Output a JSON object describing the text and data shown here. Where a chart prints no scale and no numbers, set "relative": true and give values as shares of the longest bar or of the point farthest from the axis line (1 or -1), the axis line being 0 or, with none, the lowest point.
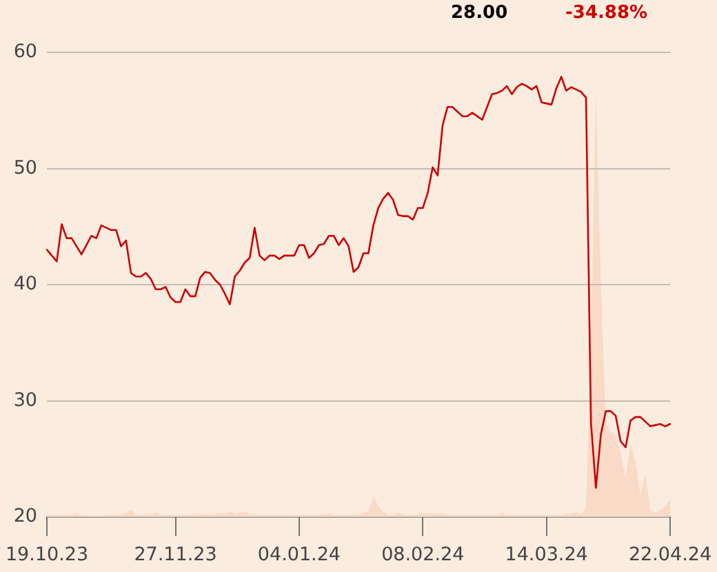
{
  "chart_data": [
    {
      "type": "line",
      "categories": [
        "19.10.23",
        null,
        null,
        null,
        null,
        null,
        null,
        null,
        null,
        null,
        null,
        null,
        null,
        null,
        null,
        null,
        null,
        null,
        null,
        null,
        null,
        null,
        null,
        null,
        null,
        null,
        "27.11.23",
        null,
        null,
        null,
        null,
        null,
        null,
        null,
        null,
        null,
        null,
        null,
        null,
        null,
        null,
        null,
        null,
        null,
        null,
        null,
        null,
        null,
        null,
        null,
        null,
        "04.01.24",
        null,
        null,
        null,
        null,
        null,
        null,
        null,
        null,
        null,
        null,
        null,
        null,
        null,
        null,
        null,
        null,
        null,
        null,
        null,
        null,
        null,
        null,
        null,
        null,
        "08.02.24",
        null,
        null,
        null,
        null,
        null,
        null,
        null,
        null,
        null,
        null,
        null,
        null,
        null,
        null,
        null,
        null,
        null,
        null,
        null,
        null,
        null,
        null,
        null,
        null,
        "14.03.24",
        null,
        null,
        null,
        null,
        null,
        null,
        null,
        null,
        null,
        null,
        null,
        null,
        null,
        null,
        null,
        null,
        null,
        null,
        null,
        null,
        null,
        null,
        null,
        null,
        "22.04.24"
      ],
      "values": [
        43.0,
        42.5,
        42.0,
        45.2,
        44.0,
        44.0,
        43.3,
        42.6,
        43.4,
        44.2,
        44.0,
        45.1,
        44.9,
        44.7,
        44.7,
        43.3,
        43.8,
        41.0,
        40.7,
        40.7,
        41.0,
        40.5,
        39.6,
        39.6,
        39.8,
        38.9,
        38.5,
        38.5,
        39.6,
        39.0,
        39.0,
        40.6,
        41.1,
        41.0,
        40.4,
        40.0,
        39.2,
        38.3,
        40.7,
        41.2,
        41.9,
        42.3,
        44.9,
        42.5,
        42.1,
        42.5,
        42.5,
        42.2,
        42.5,
        42.5,
        42.5,
        43.4,
        43.4,
        42.3,
        42.7,
        43.4,
        43.5,
        44.2,
        44.2,
        43.4,
        44.0,
        43.3,
        41.1,
        41.5,
        42.7,
        42.7,
        45.1,
        46.6,
        47.4,
        47.9,
        47.3,
        46.0,
        45.9,
        45.9,
        45.6,
        46.6,
        46.6,
        47.9,
        50.1,
        49.4,
        53.7,
        55.3,
        55.3,
        54.9,
        54.5,
        54.5,
        54.8,
        54.5,
        54.2,
        55.3,
        56.4,
        56.5,
        56.7,
        57.1,
        56.4,
        57.0,
        57.3,
        57.1,
        56.8,
        57.1,
        55.7,
        55.6,
        55.5,
        56.9,
        57.9,
        56.7,
        57.0,
        56.8,
        56.6,
        56.1,
        28.1,
        22.5,
        27.1,
        29.1,
        29.1,
        28.7,
        26.5,
        26.0,
        28.3,
        28.6,
        28.6,
        28.2,
        27.8,
        27.9,
        28.0,
        27.8,
        28.0
      ],
      "color": "#cc0000",
      "ylim": [
        20,
        60
      ],
      "yticks": [
        20,
        30,
        40,
        50,
        60
      ],
      "grid": "y",
      "annotations": [
        "28.00",
        "-34.88%"
      ]
    },
    {
      "type": "area",
      "categories": [
        "19.10.23",
        null,
        null,
        null,
        null,
        null,
        null,
        null,
        null,
        null,
        null,
        null,
        null,
        null,
        null,
        null,
        null,
        null,
        null,
        null,
        null,
        null,
        null,
        null,
        null,
        null,
        "27.11.23",
        null,
        null,
        null,
        null,
        null,
        null,
        null,
        null,
        null,
        null,
        null,
        null,
        null,
        null,
        null,
        null,
        null,
        null,
        null,
        null,
        null,
        null,
        null,
        null,
        "04.01.24",
        null,
        null,
        null,
        null,
        null,
        null,
        null,
        null,
        null,
        null,
        null,
        null,
        null,
        null,
        null,
        null,
        null,
        null,
        null,
        null,
        null,
        null,
        null,
        null,
        "08.02.24",
        null,
        null,
        null,
        null,
        null,
        null,
        null,
        null,
        null,
        null,
        null,
        null,
        null,
        null,
        null,
        null,
        null,
        null,
        null,
        null,
        null,
        null,
        null,
        null,
        "14.03.24",
        null,
        null,
        null,
        null,
        null,
        null,
        null,
        null,
        null,
        null,
        null,
        null,
        null,
        null,
        null,
        null,
        null,
        null,
        null,
        null,
        null,
        null,
        null,
        null,
        "22.04.24"
      ],
      "values": [
        0.004,
        0.004,
        0.004,
        0.004,
        0.004,
        0.005,
        0.008,
        0.004,
        0.003,
        0.003,
        0.003,
        0.003,
        0.004,
        0.004,
        0.004,
        0.006,
        0.008,
        0.016,
        0.006,
        0.004,
        0.005,
        0.006,
        0.011,
        0.005,
        0.004,
        0.004,
        0.004,
        0.004,
        0.004,
        0.004,
        0.005,
        0.007,
        0.006,
        0.005,
        0.006,
        0.008,
        0.007,
        0.013,
        0.007,
        0.01,
        0.012,
        0.006,
        0.005,
        0.004,
        0.004,
        0.004,
        0.004,
        0.004,
        0.004,
        0.004,
        0.004,
        0.004,
        0.004,
        0.004,
        0.004,
        0.004,
        0.006,
        0.007,
        0.004,
        0.004,
        0.004,
        0.004,
        0.006,
        0.005,
        0.01,
        0.012,
        0.049,
        0.025,
        0.012,
        0.005,
        0.004,
        0.01,
        0.005,
        0.004,
        0.004,
        0.006,
        0.008,
        0.009,
        0.008,
        0.006,
        0.008,
        0.005,
        0.004,
        0.004,
        0.004,
        0.004,
        0.004,
        0.004,
        0.004,
        0.004,
        0.004,
        0.005,
        0.008,
        0.004,
        0.004,
        0.004,
        0.004,
        0.004,
        0.005,
        0.005,
        0.004,
        0.004,
        0.004,
        0.004,
        0.004,
        0.006,
        0.008,
        0.01,
        0.006,
        0.02,
        0.4,
        1,
        0.55,
        0.22,
        0.2,
        0.19,
        0.15,
        0.09,
        0.17,
        0.13,
        0.05,
        0.1,
        0.015,
        0.01,
        0.015,
        0.025,
        0.04
      ],
      "color": "#f8dac6",
      "relative": true,
      "tick_labels": false
    }
  ]
}
